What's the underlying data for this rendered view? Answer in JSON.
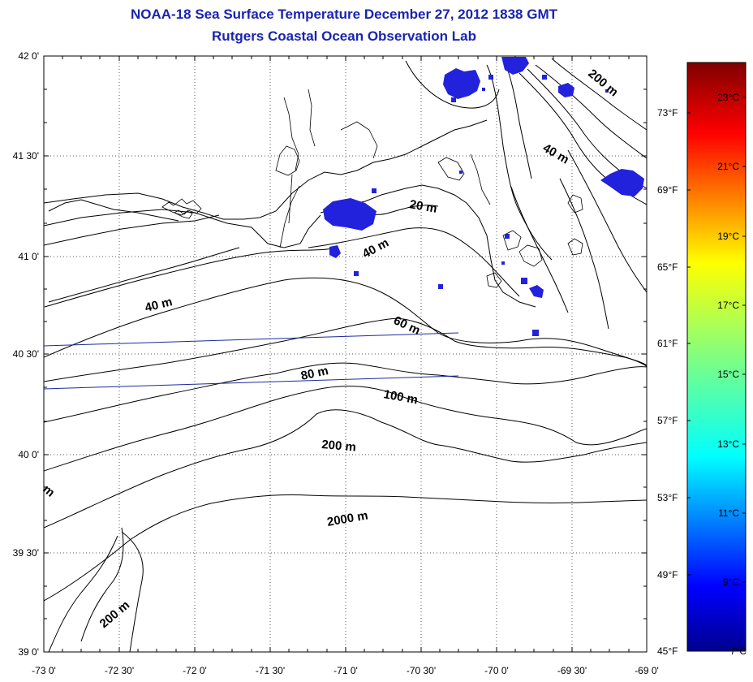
{
  "title": {
    "line1": "NOAA-18 Sea Surface Temperature December 27, 2012 1838 GMT",
    "line2": "Rutgers Coastal Ocean Observation Lab",
    "color": "#1a24b0"
  },
  "map": {
    "lat_ticks": [
      "42 0'",
      "41 30'",
      "41 0'",
      "40 30'",
      "40 0'",
      "39 30'",
      "39 0'"
    ],
    "lon_ticks": [
      "-73 0'",
      "-72 30'",
      "-72 0'",
      "-71 30'",
      "-71 0'",
      "-70 30'",
      "-70 0'",
      "-69 30'",
      "-69 0'"
    ],
    "contour_labels": [
      "200 m",
      "40 m",
      "20 m",
      "40 m",
      "40 m",
      "60 m",
      "80 m",
      "100 m",
      "200 m",
      "m",
      "2000 m",
      "200 m"
    ]
  },
  "colorbar": {
    "fahrenheit_ticks": [
      "73°F",
      "69°F",
      "65°F",
      "61°F",
      "57°F",
      "53°F",
      "49°F",
      "45°F"
    ],
    "celsius_ticks": [
      "23°C",
      "21°C",
      "19°C",
      "17°C",
      "15°C",
      "13°C",
      "11°C",
      "9°C",
      "7°C"
    ],
    "gradient_colors": [
      "#00008f",
      "#0000ff",
      "#0080ff",
      "#00ffff",
      "#80ff80",
      "#ffff00",
      "#ff8000",
      "#ff0000",
      "#800000"
    ]
  },
  "colors": {
    "cloud_patch": "#2222dd",
    "track_line": "#1a2aa0"
  }
}
